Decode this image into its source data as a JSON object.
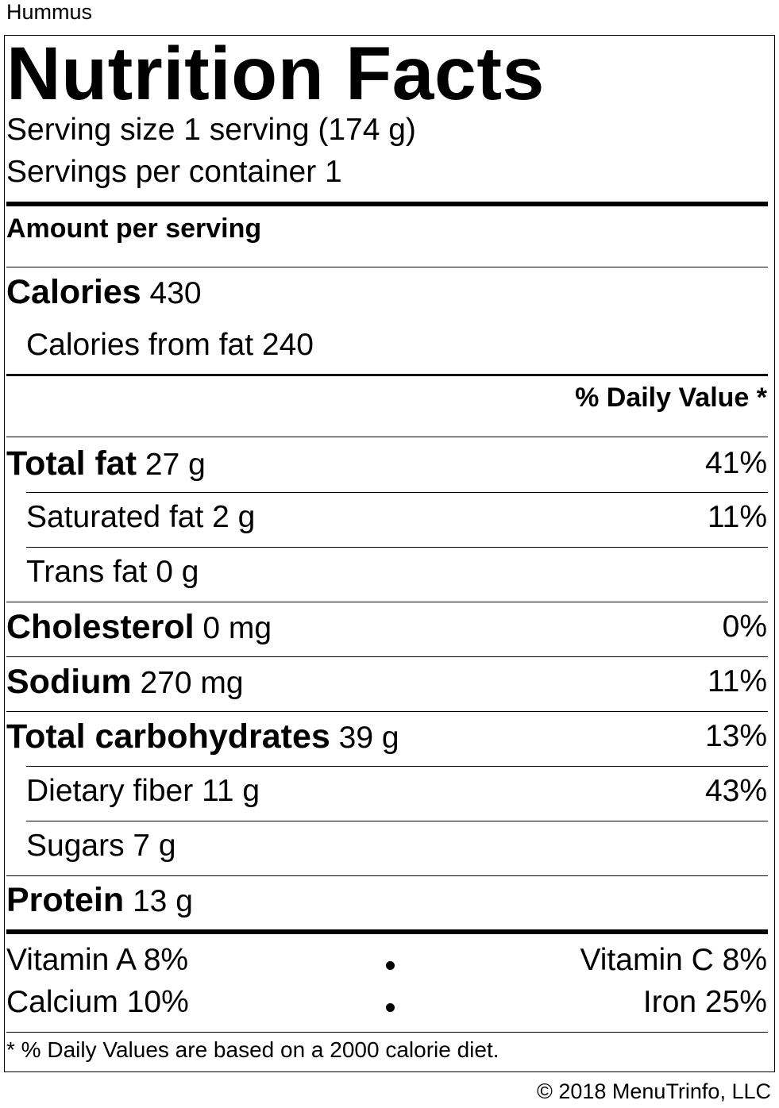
{
  "food_name": "Hummus",
  "title": "Nutrition Facts",
  "serving_size": "Serving size 1 serving (174 g)",
  "servings_per_container": "Servings per container 1",
  "amount_per_serving": "Amount per serving",
  "calories": {
    "label": "Calories",
    "value": "430"
  },
  "calories_from_fat": "Calories from fat 240",
  "daily_value_header": "% Daily Value *",
  "nutrients": {
    "total_fat": {
      "label": "Total fat",
      "amount": "27 g",
      "dv": "41%"
    },
    "saturated_fat": {
      "label": "Saturated fat 2 g",
      "dv": "11%"
    },
    "trans_fat": {
      "label": "Trans fat 0 g"
    },
    "cholesterol": {
      "label": "Cholesterol",
      "amount": "0 mg",
      "dv": "0%"
    },
    "sodium": {
      "label": "Sodium",
      "amount": "270 mg",
      "dv": "11%"
    },
    "total_carbs": {
      "label": "Total carbohydrates",
      "amount": "39 g",
      "dv": "13%"
    },
    "dietary_fiber": {
      "label": "Dietary fiber 11 g",
      "dv": "43%"
    },
    "sugars": {
      "label": "Sugars 7 g"
    },
    "protein": {
      "label": "Protein",
      "amount": "13 g"
    }
  },
  "vitamins": {
    "vitamin_a": "Vitamin A 8%",
    "vitamin_c": "Vitamin C 8%",
    "calcium": "Calcium 10%",
    "iron": "Iron 25%"
  },
  "footnote": "* % Daily Values are based on a 2000 calorie diet.",
  "copyright": "© 2018 MenuTrinfo, LLC"
}
